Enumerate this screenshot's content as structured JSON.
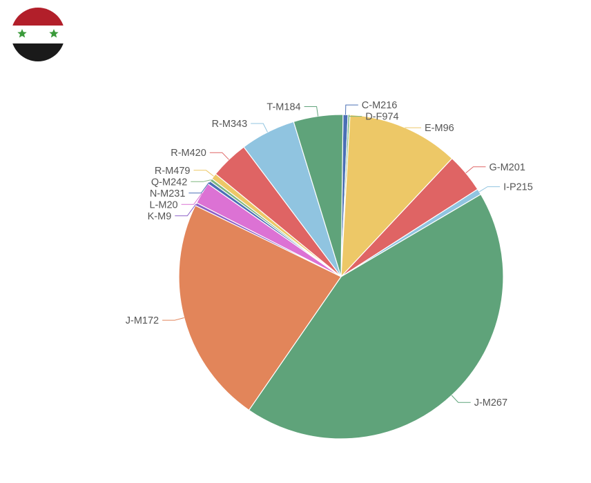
{
  "flag": {
    "icon": "syria-flag-icon",
    "colors": {
      "top": "#b21f2a",
      "middle": "#ffffff",
      "bottom": "#1a1a1a",
      "stars": "#3a9a3a"
    }
  },
  "chart_data": {
    "type": "pie",
    "title": "",
    "unit": "",
    "slices": [
      {
        "label": "C-M216",
        "value": 0.5,
        "color": "#4a6fb5"
      },
      {
        "label": "D-F974",
        "value": 0.2,
        "color": "#7fb77e"
      },
      {
        "label": "E-M96",
        "value": 11.3,
        "color": "#edc867"
      },
      {
        "label": "G-M201",
        "value": 4.0,
        "color": "#df6464"
      },
      {
        "label": "I-P215",
        "value": 0.6,
        "color": "#90c4e0"
      },
      {
        "label": "J-M267",
        "value": 43.8,
        "color": "#5fa37a"
      },
      {
        "label": "J-M172",
        "value": 23.0,
        "color": "#e2855a"
      },
      {
        "label": "K-M9",
        "value": 0.3,
        "color": "#8a5fc7"
      },
      {
        "label": "L-M20",
        "value": 2.2,
        "color": "#dc72d4"
      },
      {
        "label": "N-M231",
        "value": 0.35,
        "color": "#4a6fb5"
      },
      {
        "label": "Q-M242",
        "value": 0.3,
        "color": "#7fb77e"
      },
      {
        "label": "R-M479",
        "value": 0.6,
        "color": "#edc867"
      },
      {
        "label": "R-M420",
        "value": 3.9,
        "color": "#df6464"
      },
      {
        "label": "R-M343",
        "value": 5.6,
        "color": "#90c4e0"
      },
      {
        "label": "T-M184",
        "value": 5.0,
        "color": "#5fa37a"
      }
    ]
  }
}
